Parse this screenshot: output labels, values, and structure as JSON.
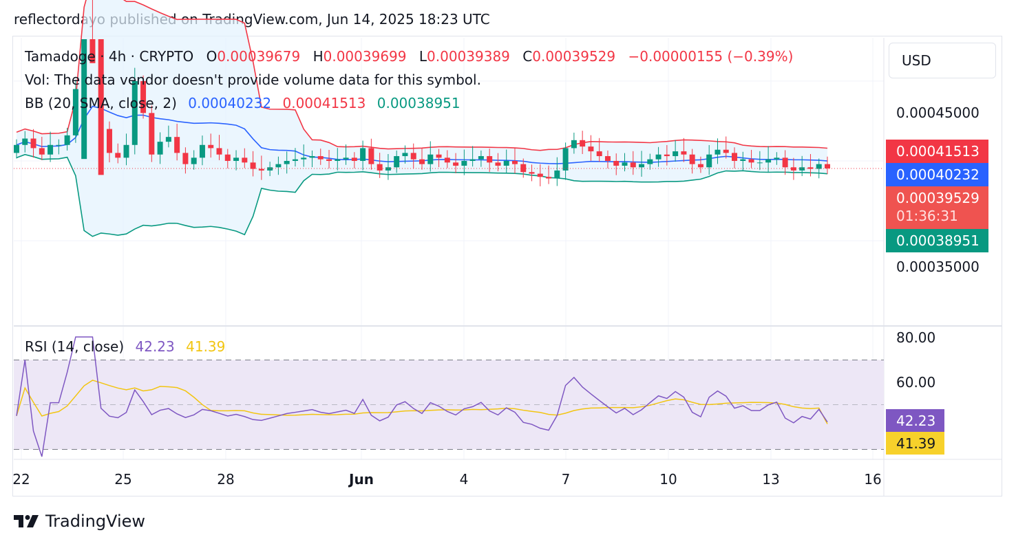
{
  "header": {
    "publish_line": "reflectordayo published on TradingView.com, Jun 14, 2025 18:23 UTC"
  },
  "legend": {
    "symbol": "Tamadoge · 4h · CRYPTO",
    "o_label": "O",
    "o_value": "0.00039679",
    "h_label": "H",
    "h_value": "0.00039699",
    "l_label": "L",
    "l_value": "0.00039389",
    "c_label": "C",
    "c_value": "0.00039529",
    "change": "−0.00000155 (−0.39%)",
    "vol_text": "Vol: The data vendor doesn't provide volume data for this symbol.",
    "bb_label": "BB (20, SMA, close, 2)",
    "bb_basis": "0.00040232",
    "bb_upper": "0.00041513",
    "bb_lower": "0.00038951",
    "rsi_label": "RSI (14, close)",
    "rsi_value": "42.23",
    "rsi_ma_value": "41.39"
  },
  "currency": "USD",
  "price_axis": {
    "tick_high": "0.00045000",
    "tick_low": "0.00035000",
    "tag_upper": "0.00041513",
    "tag_basis": "0.00040232",
    "tag_close": "0.00039529",
    "tag_countdown": "01:36:31",
    "tag_lower": "0.00038951"
  },
  "rsi_axis": {
    "tick_80": "80.00",
    "tick_60": "60.00",
    "tag_rsi": "42.23",
    "tag_rsi_ma": "41.39"
  },
  "x_axis": {
    "labels": [
      "22",
      "25",
      "28",
      "Jun",
      "4",
      "7",
      "10",
      "13",
      "16"
    ]
  },
  "footer": {
    "brand": "TradingView"
  },
  "colors": {
    "up": "#089981",
    "down": "#f23645",
    "bb_basis": "#2962ff",
    "bb_upper": "#f23645",
    "bb_lower": "#089981",
    "bb_fill": "#e3f2fd",
    "rsi": "#7e57c2",
    "rsi_ma": "#f2c511",
    "rsi_band": "#ede7f6"
  },
  "chart_data": [
    {
      "type": "candlestick",
      "title": "Tamadoge · 4h · CRYPTO",
      "x_range": [
        "2025-05-22",
        "2025-06-16"
      ],
      "y_range": [
        0.00031,
        0.00049
      ],
      "x_ticks": [
        "22",
        "25",
        "28",
        "Jun",
        "4",
        "7",
        "10",
        "13",
        "16"
      ],
      "y_ticks": [
        0.00035,
        0.00045
      ],
      "last_close": 0.00039529,
      "bollinger_last": {
        "upper": 0.00041513,
        "basis": 0.00040232,
        "lower": 0.00038951
      },
      "closes": [
        0.00041,
        0.000414,
        0.000408,
        0.000404,
        0.00041,
        0.00041,
        0.000416,
        0.000445,
        0.00052,
        0.000505,
        0.00042,
        0.000405,
        0.000402,
        0.00041,
        0.00045,
        0.00043,
        0.000404,
        0.000412,
        0.000415,
        0.000405,
        0.000398,
        0.000402,
        0.00041,
        0.000408,
        0.000404,
        0.0004,
        0.000402,
        0.000399,
        0.000395,
        0.000394,
        0.000396,
        0.000398,
        0.0004,
        0.000401,
        0.000402,
        0.000403,
        0.000401,
        0.0004,
        0.000401,
        0.000402,
        0.0004,
        0.000408,
        0.000398,
        0.000394,
        0.000396,
        0.000403,
        0.000405,
        0.000401,
        0.000398,
        0.000404,
        0.000402,
        0.000399,
        0.000397,
        0.0004,
        0.000401,
        0.000403,
        0.000399,
        0.000397,
        0.0004,
        0.000398,
        0.000393,
        0.000392,
        0.00039,
        0.000389,
        0.000394,
        0.000408,
        0.000413,
        0.000409,
        0.000406,
        0.000403,
        0.0004,
        0.000397,
        0.000399,
        0.000396,
        0.000398,
        0.000401,
        0.000404,
        0.000403,
        0.000406,
        0.000404,
        0.000398,
        0.000396,
        0.000404,
        0.000407,
        0.000405,
        0.0004,
        0.000401,
        0.000399,
        0.000399,
        0.000401,
        0.000402,
        0.000396,
        0.000394,
        0.000396,
        0.000395,
        0.000398,
        0.00039529
      ],
      "rsi": {
        "last": 42.23,
        "ma_last": 41.39,
        "levels": [
          70,
          50,
          30
        ],
        "y_ticks": [
          80,
          60
        ]
      }
    }
  ]
}
